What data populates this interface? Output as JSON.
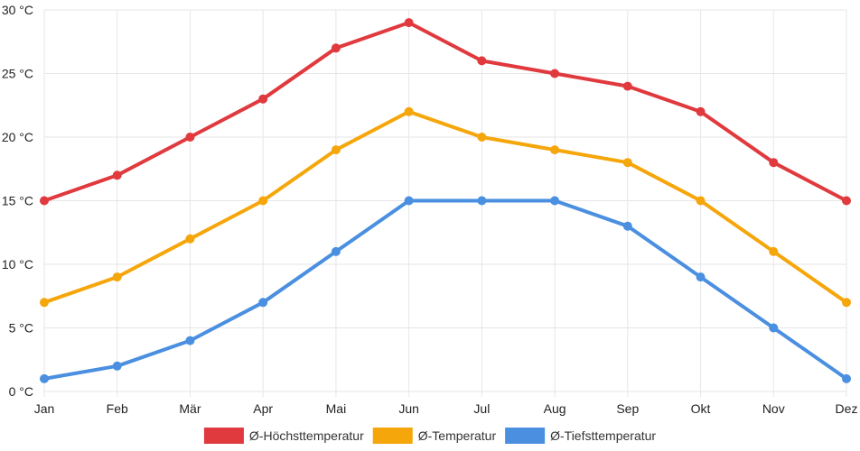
{
  "chart_data": {
    "type": "line",
    "title": "",
    "xlabel": "",
    "ylabel": "",
    "categories": [
      "Jan",
      "Feb",
      "Mär",
      "Apr",
      "Mai",
      "Jun",
      "Jul",
      "Aug",
      "Sep",
      "Okt",
      "Nov",
      "Dez"
    ],
    "ylim": [
      0,
      30
    ],
    "yticks": [
      0,
      5,
      10,
      15,
      20,
      25,
      30
    ],
    "ytick_labels": [
      "0 °C",
      "5 °C",
      "10 °C",
      "15 °C",
      "20 °C",
      "25 °C",
      "30 °C"
    ],
    "grid": true,
    "legend_position": "bottom",
    "series": [
      {
        "name": "Ø-Höchsttemperatur",
        "color": "#e0393e",
        "values": [
          15,
          17,
          20,
          23,
          27,
          29,
          26,
          25,
          24,
          22,
          18,
          15
        ]
      },
      {
        "name": "Ø-Temperatur",
        "color": "#f5a60b",
        "values": [
          7,
          9,
          12,
          15,
          19,
          22,
          20,
          19,
          18,
          15,
          11,
          7
        ]
      },
      {
        "name": "Ø-Tiefsttemperatur",
        "color": "#4a8fe0",
        "values": [
          1,
          2,
          4,
          7,
          11,
          15,
          15,
          15,
          13,
          9,
          5,
          1
        ]
      }
    ]
  }
}
